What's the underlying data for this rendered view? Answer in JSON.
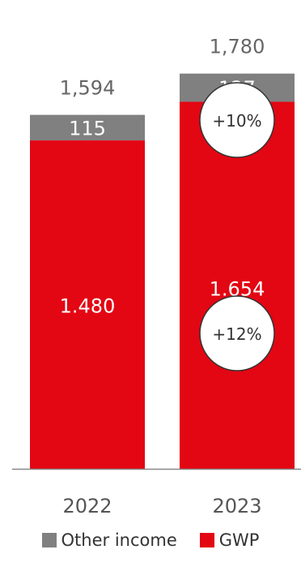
{
  "colors": {
    "gwp": "#E30613",
    "other_income": "#808080",
    "total_label": "#666666",
    "axis": "#888888",
    "circle_border": "#333333"
  },
  "legend": {
    "other_income": "Other income",
    "gwp": "GWP"
  },
  "chart_data": {
    "type": "bar",
    "stacked": true,
    "categories": [
      "2022",
      "2023"
    ],
    "series": [
      {
        "name": "GWP",
        "values": [
          1480,
          1654
        ],
        "labels": [
          "1.480",
          "1.654"
        ]
      },
      {
        "name": "Other income",
        "values": [
          115,
          127
        ],
        "labels": [
          "115",
          "127"
        ]
      }
    ],
    "totals": [
      "1,594",
      "1,780"
    ],
    "annotations": [
      {
        "category": "2023",
        "series": "Other income",
        "text": "+10%"
      },
      {
        "category": "2023",
        "series": "GWP",
        "text": "+12%"
      }
    ],
    "ylim": [
      0,
      1780
    ],
    "grid": false,
    "legend_position": "bottom"
  }
}
